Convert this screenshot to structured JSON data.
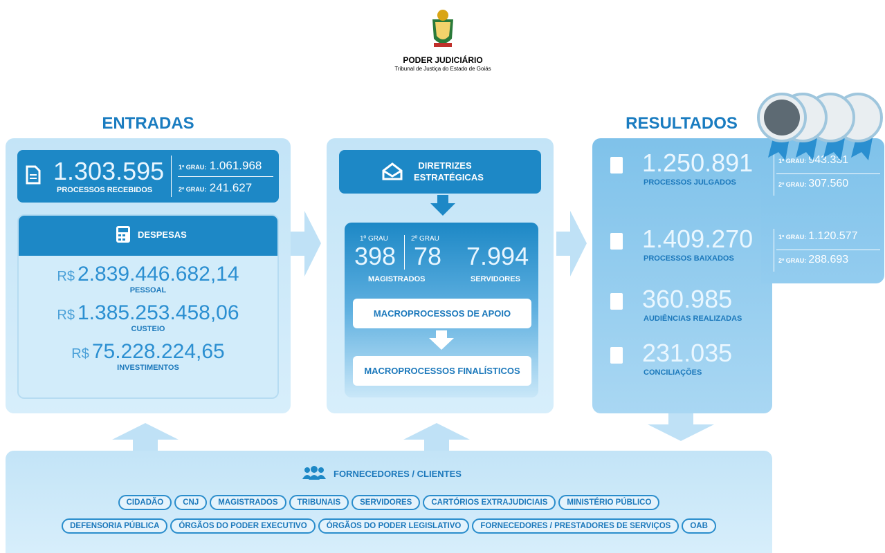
{
  "header": {
    "title": "PODER JUDICIÁRIO",
    "subtitle": "Tribunal de Justiça do Estado de Goiás"
  },
  "entradas": {
    "title": "ENTRADAS",
    "total": "1.303.595",
    "total_label": "PROCESSOS RECEBIDOS",
    "grau1_label": "1º GRAU:",
    "grau1": "1.061.968",
    "grau2_label": "2º GRAU:",
    "grau2": "241.627",
    "despesas": {
      "title": "DESPESAS",
      "items": [
        {
          "currency": "R$",
          "value": "2.839.446.682,14",
          "label": "PESSOAL"
        },
        {
          "currency": "R$",
          "value": "1.385.253.458,06",
          "label": "CUSTEIO"
        },
        {
          "currency": "R$",
          "value": "75.228.224,65",
          "label": "INVESTIMENTOS"
        }
      ]
    }
  },
  "processos": {
    "diretrizes": "DIRETRIZES ESTRATÉGICAS",
    "grau1_label": "1º GRAU",
    "magistrados_grau1": "398",
    "grau2_label": "2º GRAU",
    "magistrados_grau2": "78",
    "magistrados_label": "MAGISTRADOS",
    "servidores": "7.994",
    "servidores_label": "SERVIDORES",
    "apoio": "MACROPROCESSOS DE APOIO",
    "finalisticos": "MACROPROCESSOS FINALÍSTICOS"
  },
  "resultados": {
    "title": "RESULTADOS",
    "items": [
      {
        "value": "1.250.891",
        "label": "PROCESSOS JULGADOS",
        "grau1_label": "1º GRAU:",
        "grau1": "943.331",
        "grau2_label": "2º GRAU:",
        "grau2": "307.560"
      },
      {
        "value": "1.409.270",
        "label": "PROCESSOS BAIXADOS",
        "grau1_label": "1º GRAU:",
        "grau1": "1.120.577",
        "grau2_label": "2º GRAU:",
        "grau2": "288.693"
      },
      {
        "value": "360.985",
        "label": "AUDIÊNCIAS REALIZADAS"
      },
      {
        "value": "231.035",
        "label": "CONCILIAÇÕES"
      }
    ]
  },
  "fornecedores": {
    "title": "FORNECEDORES / CLIENTES",
    "rows": [
      [
        "CIDADÃO",
        "CNJ",
        "MAGISTRADOS",
        "TRIBUNAIS",
        "SERVIDORES",
        "CARTÓRIOS EXTRAJUDICIAIS",
        "MINISTÉRIO PÚBLICO"
      ],
      [
        "DEFENSORIA PÚBLICA",
        "ÓRGÃOS DO PODER EXECUTIVO",
        "ÓRGÃOS DO PODER LEGISLATIVO",
        "FORNECEDORES / PRESTADORES DE SERVIÇOS",
        "OAB"
      ]
    ]
  }
}
